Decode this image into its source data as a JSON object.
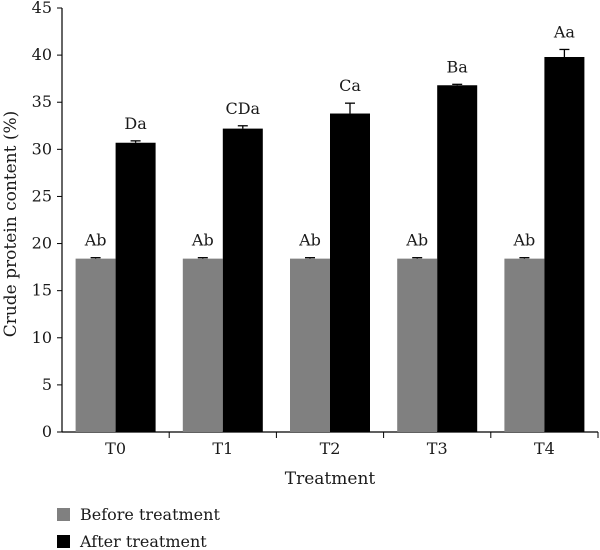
{
  "chart_data": {
    "type": "bar",
    "title": "",
    "xlabel": "Treatment",
    "ylabel": "Crude protein content (%)",
    "categories": [
      "T0",
      "T1",
      "T2",
      "T3",
      "T4"
    ],
    "ylim": [
      0,
      45
    ],
    "yticks": [
      0,
      5,
      10,
      15,
      20,
      25,
      30,
      35,
      40,
      45
    ],
    "grid": false,
    "legend_position": "bottom-left",
    "series": [
      {
        "name": "Before treatment",
        "color": "#808080",
        "values": [
          18.4,
          18.4,
          18.4,
          18.4,
          18.4
        ],
        "errors": [
          0.1,
          0.1,
          0.1,
          0.1,
          0.1
        ],
        "labels": [
          "Ab",
          "Ab",
          "Ab",
          "Ab",
          "Ab"
        ]
      },
      {
        "name": "After treatment",
        "color": "#000000",
        "values": [
          30.7,
          32.2,
          33.8,
          36.8,
          39.8
        ],
        "errors": [
          0.2,
          0.3,
          1.1,
          0.1,
          0.8
        ],
        "labels": [
          "Da",
          "CDa",
          "Ca",
          "Ba",
          "Aa"
        ]
      }
    ]
  }
}
